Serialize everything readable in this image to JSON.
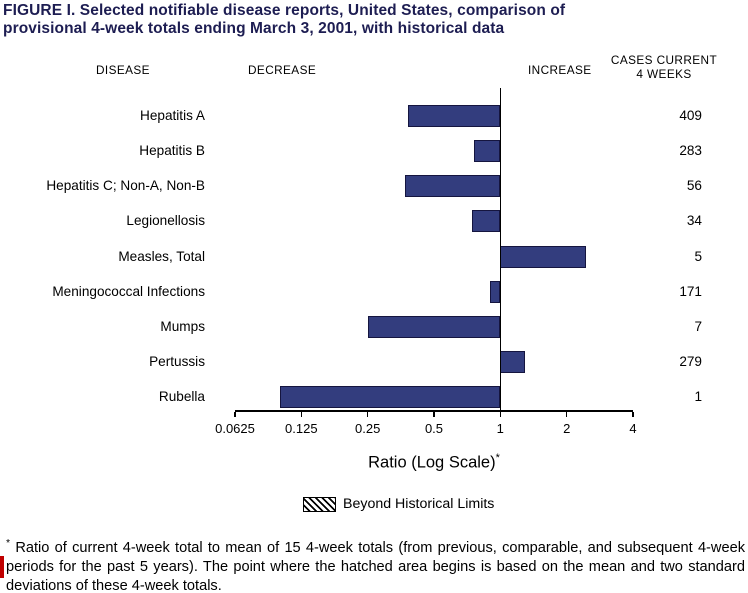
{
  "title": {
    "line1": "FIGURE I.  Selected notifiable disease reports, United States, comparison of",
    "line2": "provisional 4-week totals ending March 3, 2001, with historical data"
  },
  "headers": {
    "disease": "DISEASE",
    "decrease": "DECREASE",
    "increase": "INCREASE",
    "cases_line1": "CASES CURRENT",
    "cases_line2": "4 WEEKS"
  },
  "chart_data": {
    "type": "bar",
    "orientation": "horizontal",
    "scale": "log",
    "title": "FIGURE I. Selected notifiable disease reports, United States, comparison of provisional 4-week totals ending March 3, 2001, with historical data",
    "categories": [
      "Hepatitis A",
      "Hepatitis B",
      "Hepatitis C; Non-A, Non-B",
      "Legionellosis",
      "Measles, Total",
      "Meningococcal Infections",
      "Mumps",
      "Pertussis",
      "Rubella"
    ],
    "series": [
      {
        "name": "Ratio of current 4-week total to historical mean",
        "values": [
          0.38,
          0.76,
          0.37,
          0.74,
          2.45,
          0.9,
          0.25,
          1.3,
          0.1
        ]
      },
      {
        "name": "Cases current 4 weeks",
        "values": [
          409,
          283,
          56,
          34,
          5,
          171,
          7,
          279,
          1
        ]
      }
    ],
    "beyond_historical_limits": [
      false,
      false,
      false,
      false,
      false,
      false,
      false,
      false,
      false
    ],
    "baseline": 1,
    "xlim": [
      0.0625,
      4
    ],
    "x_ticks": [
      0.0625,
      0.125,
      0.25,
      0.5,
      1,
      2,
      4
    ],
    "x_tick_labels": [
      "0.0625",
      "0.125",
      "0.25",
      "0.5",
      "1",
      "2",
      "4"
    ],
    "xlabel": "Ratio (Log Scale)",
    "xlabel_footnote_marker": "*",
    "legend": [
      {
        "label": "Beyond Historical Limits",
        "style": "hatched"
      }
    ],
    "bar_color": "#333d7e",
    "grid": false
  },
  "footnote": {
    "marker": "*",
    "text": "Ratio of current 4-week total to mean of 15 4-week totals (from previous, comparable, and subsequent 4-week periods for the past 5 years). The point where the hatched area begins is based on the mean and two standard deviations of these 4-week totals."
  },
  "colors": {
    "bar": "#333d7e",
    "title_text": "#1d1d52",
    "edge_mark": "#c00000"
  }
}
